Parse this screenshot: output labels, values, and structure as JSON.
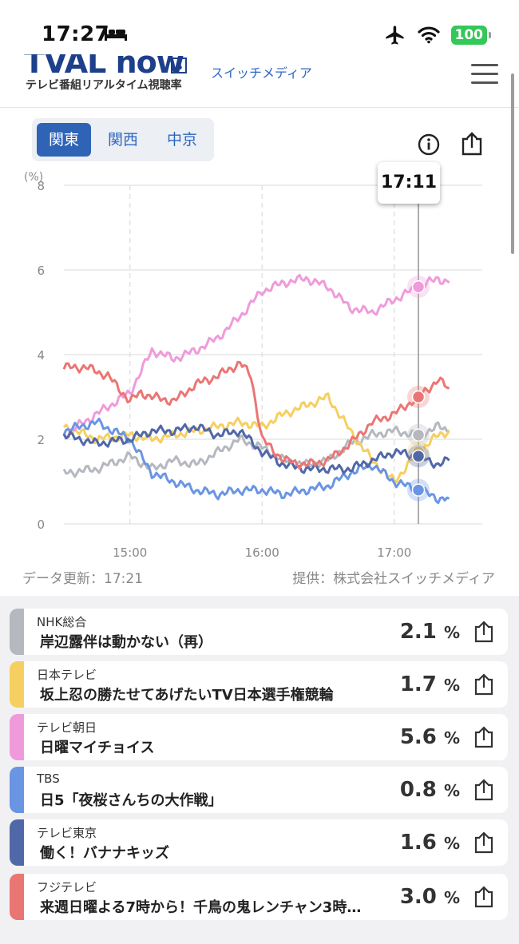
{
  "status_bar": {
    "time": "17:27",
    "battery": "100",
    "icons": [
      "bed-icon",
      "airplane-icon",
      "wifi-icon",
      "battery-icon"
    ]
  },
  "header": {
    "logo_text": "TVAL now",
    "logo_beta": "β",
    "logo_sub": "テレビ番組リアルタイム視聴率",
    "brand_link": "スイッチメディア",
    "menu_icon": "hamburger-icon"
  },
  "region_tabs": [
    {
      "label": "関東",
      "active": true
    },
    {
      "label": "関西",
      "active": false
    },
    {
      "label": "中京",
      "active": false
    }
  ],
  "toolbar_icons": [
    "info-icon",
    "share-icon"
  ],
  "chart": {
    "tooltip_time": "17:11",
    "unit_label": "(%)",
    "update_text": "データ更新：17:21",
    "provider_text": "提供：株式会社スイッチメディア"
  },
  "chart_data": {
    "type": "line",
    "ylabel": "(%)",
    "ylim": [
      0,
      8
    ],
    "yticks": [
      "0",
      "2",
      "4",
      "6",
      "8"
    ],
    "xticks": [
      "15:00",
      "16:00",
      "17:00"
    ],
    "xlim": [
      "14:30",
      "17:40"
    ],
    "grid": true,
    "series": [
      {
        "name": "NHK総合",
        "color": "#b5b8bf",
        "points": [
          [
            "14:30",
            1.2
          ],
          [
            "14:45",
            1.3
          ],
          [
            "15:00",
            1.6
          ],
          [
            "15:10",
            1.3
          ],
          [
            "15:20",
            1.5
          ],
          [
            "15:30",
            1.4
          ],
          [
            "15:40",
            1.7
          ],
          [
            "15:50",
            2.0
          ],
          [
            "16:00",
            1.8
          ],
          [
            "16:10",
            1.5
          ],
          [
            "16:20",
            1.4
          ],
          [
            "16:30",
            1.5
          ],
          [
            "16:40",
            1.9
          ],
          [
            "16:50",
            2.1
          ],
          [
            "17:00",
            2.2
          ],
          [
            "17:11",
            2.1
          ],
          [
            "17:20",
            2.3
          ],
          [
            "17:25",
            2.2
          ]
        ]
      },
      {
        "name": "日本テレビ",
        "color": "#f5cf60",
        "points": [
          [
            "14:30",
            2.3
          ],
          [
            "14:45",
            2.0
          ],
          [
            "15:00",
            2.1
          ],
          [
            "15:10",
            2.0
          ],
          [
            "15:20",
            2.1
          ],
          [
            "15:30",
            2.2
          ],
          [
            "15:40",
            2.3
          ],
          [
            "15:50",
            2.4
          ],
          [
            "16:00",
            2.3
          ],
          [
            "16:10",
            2.6
          ],
          [
            "16:20",
            2.8
          ],
          [
            "16:30",
            3.0
          ],
          [
            "16:40",
            2.2
          ],
          [
            "16:50",
            1.5
          ],
          [
            "17:00",
            1.0
          ],
          [
            "17:11",
            1.7
          ],
          [
            "17:20",
            2.1
          ],
          [
            "17:25",
            2.2
          ]
        ]
      },
      {
        "name": "テレビ朝日",
        "color": "#ef9bdb",
        "points": [
          [
            "14:30",
            2.1
          ],
          [
            "14:45",
            2.6
          ],
          [
            "15:00",
            3.1
          ],
          [
            "15:10",
            4.1
          ],
          [
            "15:20",
            3.9
          ],
          [
            "15:30",
            4.1
          ],
          [
            "15:40",
            4.4
          ],
          [
            "15:50",
            4.9
          ],
          [
            "16:00",
            5.5
          ],
          [
            "16:10",
            5.7
          ],
          [
            "16:20",
            5.8
          ],
          [
            "16:30",
            5.6
          ],
          [
            "16:40",
            5.1
          ],
          [
            "16:50",
            5.0
          ],
          [
            "17:00",
            5.3
          ],
          [
            "17:11",
            5.6
          ],
          [
            "17:20",
            5.8
          ],
          [
            "17:25",
            5.7
          ]
        ]
      },
      {
        "name": "TBS",
        "color": "#6a95e3",
        "points": [
          [
            "14:30",
            2.2
          ],
          [
            "14:45",
            2.4
          ],
          [
            "15:00",
            2.0
          ],
          [
            "15:10",
            1.2
          ],
          [
            "15:20",
            1.0
          ],
          [
            "15:30",
            0.8
          ],
          [
            "15:40",
            0.7
          ],
          [
            "15:50",
            0.8
          ],
          [
            "16:00",
            0.8
          ],
          [
            "16:10",
            0.7
          ],
          [
            "16:20",
            0.8
          ],
          [
            "16:30",
            0.9
          ],
          [
            "16:40",
            1.2
          ],
          [
            "16:50",
            1.4
          ],
          [
            "17:00",
            1.0
          ],
          [
            "17:11",
            0.8
          ],
          [
            "17:20",
            0.6
          ],
          [
            "17:25",
            0.6
          ]
        ]
      },
      {
        "name": "テレビ東京",
        "color": "#5168a8",
        "points": [
          [
            "14:30",
            2.1
          ],
          [
            "14:45",
            1.9
          ],
          [
            "15:00",
            2.0
          ],
          [
            "15:10",
            2.2
          ],
          [
            "15:20",
            2.2
          ],
          [
            "15:30",
            2.3
          ],
          [
            "15:40",
            2.1
          ],
          [
            "15:50",
            2.2
          ],
          [
            "16:00",
            1.7
          ],
          [
            "16:10",
            1.4
          ],
          [
            "16:20",
            1.3
          ],
          [
            "16:30",
            1.3
          ],
          [
            "16:40",
            1.3
          ],
          [
            "16:50",
            1.5
          ],
          [
            "17:00",
            1.7
          ],
          [
            "17:11",
            1.6
          ],
          [
            "17:20",
            1.4
          ],
          [
            "17:25",
            1.5
          ]
        ]
      },
      {
        "name": "フジテレビ",
        "color": "#ea7674",
        "points": [
          [
            "14:30",
            3.7
          ],
          [
            "14:40",
            3.7
          ],
          [
            "14:50",
            3.5
          ],
          [
            "15:00",
            2.9
          ],
          [
            "15:05",
            3.1
          ],
          [
            "15:10",
            3.0
          ],
          [
            "15:20",
            2.9
          ],
          [
            "15:30",
            3.3
          ],
          [
            "15:40",
            3.5
          ],
          [
            "15:50",
            3.8
          ],
          [
            "15:55",
            3.5
          ],
          [
            "16:00",
            2.0
          ],
          [
            "16:10",
            1.5
          ],
          [
            "16:20",
            1.4
          ],
          [
            "16:30",
            1.5
          ],
          [
            "16:40",
            1.9
          ],
          [
            "16:50",
            2.4
          ],
          [
            "17:00",
            2.6
          ],
          [
            "17:11",
            3.0
          ],
          [
            "17:20",
            3.4
          ],
          [
            "17:25",
            3.2
          ]
        ]
      }
    ],
    "marker_time": "17:11"
  },
  "programs": [
    {
      "channel": "NHK総合",
      "title": "岸辺露伴は動かない（再）",
      "rate": "2.1",
      "unit": "%",
      "color": "#b5b8bf"
    },
    {
      "channel": "日本テレビ",
      "title": "坂上忍の勝たせてあげたいTV日本選手権競輪",
      "rate": "1.7",
      "unit": "%",
      "color": "#f5cf60"
    },
    {
      "channel": "テレビ朝日",
      "title": "日曜マイチョイス",
      "rate": "5.6",
      "unit": "%",
      "color": "#ef9bdb"
    },
    {
      "channel": "TBS",
      "title": "日5「夜桜さんちの大作戦」",
      "rate": "0.8",
      "unit": "%",
      "color": "#6a95e3"
    },
    {
      "channel": "テレビ東京",
      "title": "働く！バナナキッズ",
      "rate": "1.6",
      "unit": "%",
      "color": "#5168a8"
    },
    {
      "channel": "フジテレビ",
      "title": "来週日曜よる7時から！千鳥の鬼レンチャン3時…",
      "rate": "3.0",
      "unit": "%",
      "color": "#ea7674"
    }
  ]
}
